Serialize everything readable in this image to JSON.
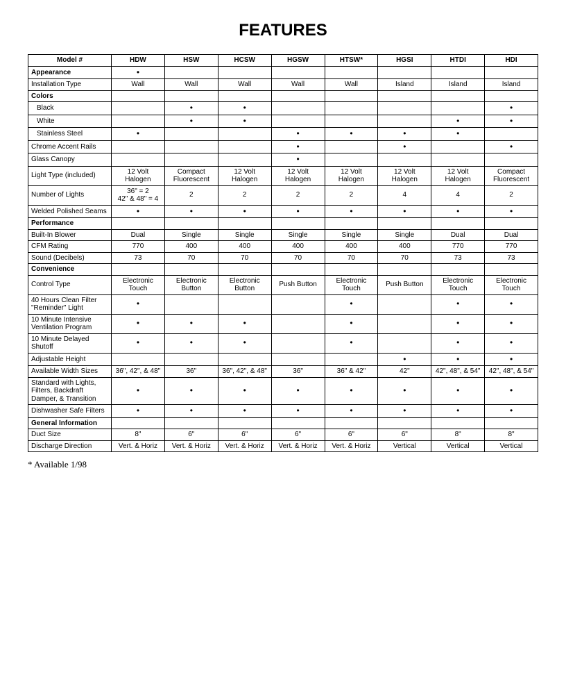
{
  "title": "FEATURES",
  "footnote": "* Available 1/98",
  "columns": [
    "Model #",
    "HDW",
    "HSW",
    "HCSW",
    "HGSW",
    "HTSW*",
    "HGSI",
    "HTDI",
    "HDI"
  ],
  "rows": [
    {
      "type": "section",
      "label": "Appearance",
      "cells": [
        "•",
        "",
        "",
        "",
        "",
        "",
        "",
        ""
      ]
    },
    {
      "type": "data",
      "label": "Installation Type",
      "cells": [
        "Wall",
        "Wall",
        "Wall",
        "Wall",
        "Wall",
        "Island",
        "Island",
        "Island"
      ]
    },
    {
      "type": "section",
      "label": "Colors",
      "cells": [
        "",
        "",
        "",
        "",
        "",
        "",
        "",
        ""
      ]
    },
    {
      "type": "indent",
      "label": "Black",
      "cells": [
        "",
        "•",
        "•",
        "",
        "",
        "",
        "",
        "•"
      ]
    },
    {
      "type": "indent",
      "label": "White",
      "cells": [
        "",
        "•",
        "•",
        "",
        "",
        "",
        "•",
        "•"
      ]
    },
    {
      "type": "indent",
      "label": "Stainless Steel",
      "cells": [
        "•",
        "",
        "",
        "•",
        "•",
        "•",
        "•",
        ""
      ]
    },
    {
      "type": "data",
      "label": "Chrome Accent Rails",
      "cells": [
        "",
        "",
        "",
        "•",
        "",
        "•",
        "",
        "•"
      ]
    },
    {
      "type": "data",
      "label": "Glass Canopy",
      "cells": [
        "",
        "",
        "",
        "•",
        "",
        "",
        "",
        ""
      ]
    },
    {
      "type": "data",
      "label": "Light Type (included)",
      "cells": [
        "12 Volt Halogen",
        "Compact Fluorescent",
        "12 Volt Halogen",
        "12 Volt Halogen",
        "12 Volt Halogen",
        "12 Volt Halogen",
        "12 Volt Halogen",
        "Compact Fluorescent"
      ]
    },
    {
      "type": "data",
      "label": "Number of Lights",
      "cells": [
        "36\" = 2\n42\" & 48\" = 4",
        "2",
        "2",
        "2",
        "2",
        "4",
        "4",
        "2"
      ]
    },
    {
      "type": "data",
      "label": "Welded Polished Seams",
      "cells": [
        "•",
        "•",
        "•",
        "•",
        "•",
        "•",
        "•",
        "•"
      ]
    },
    {
      "type": "section",
      "label": "Performance",
      "cells": [
        "",
        "",
        "",
        "",
        "",
        "",
        "",
        ""
      ]
    },
    {
      "type": "data",
      "label": "Built-In Blower",
      "cells": [
        "Dual",
        "Single",
        "Single",
        "Single",
        "Single",
        "Single",
        "Dual",
        "Dual"
      ]
    },
    {
      "type": "data",
      "label": "CFM Rating",
      "cells": [
        "770",
        "400",
        "400",
        "400",
        "400",
        "400",
        "770",
        "770"
      ]
    },
    {
      "type": "data",
      "label": "Sound (Decibels)",
      "cells": [
        "73",
        "70",
        "70",
        "70",
        "70",
        "70",
        "73",
        "73"
      ]
    },
    {
      "type": "section",
      "label": "Convenience",
      "cells": [
        "",
        "",
        "",
        "",
        "",
        "",
        "",
        ""
      ]
    },
    {
      "type": "data",
      "label": "Control Type",
      "cells": [
        "Electronic Touch",
        "Electronic Button",
        "Electronic Button",
        "Push Button",
        "Electronic Touch",
        "Push Button",
        "Electronic Touch",
        "Electronic Touch"
      ]
    },
    {
      "type": "data",
      "label": "40 Hours Clean Filter \"Reminder\" Light",
      "cells": [
        "•",
        "",
        "",
        "",
        "•",
        "",
        "•",
        "•"
      ]
    },
    {
      "type": "data",
      "label": "10 Minute Intensive Ventilation Program",
      "cells": [
        "•",
        "•",
        "•",
        "",
        "•",
        "",
        "•",
        "•"
      ]
    },
    {
      "type": "data",
      "label": "10 Minute Delayed Shutoff",
      "cells": [
        "•",
        "•",
        "•",
        "",
        "•",
        "",
        "•",
        "•"
      ]
    },
    {
      "type": "data",
      "label": "Adjustable Height",
      "cells": [
        "",
        "",
        "",
        "",
        "",
        "•",
        "•",
        "•"
      ]
    },
    {
      "type": "data",
      "label": "Available Width Sizes",
      "cells": [
        "36\", 42\", & 48\"",
        "36\"",
        "36\", 42\", & 48\"",
        "36\"",
        "36\" & 42\"",
        "42\"",
        "42\", 48\", & 54\"",
        "42\", 48\", & 54\""
      ]
    },
    {
      "type": "data",
      "label": "Standard with Lights, Filters, Backdraft Damper, & Transition",
      "cells": [
        "•",
        "•",
        "•",
        "•",
        "•",
        "•",
        "•",
        "•"
      ]
    },
    {
      "type": "data",
      "label": "Dishwasher Safe Filters",
      "cells": [
        "•",
        "•",
        "•",
        "•",
        "•",
        "•",
        "•",
        "•"
      ]
    },
    {
      "type": "section",
      "label": "General Information",
      "cells": [
        "",
        "",
        "",
        "",
        "",
        "",
        "",
        ""
      ]
    },
    {
      "type": "data",
      "label": "Duct Size",
      "cells": [
        "8\"",
        "6\"",
        "6\"",
        "6\"",
        "6\"",
        "6\"",
        "8\"",
        "8\""
      ]
    },
    {
      "type": "data",
      "label": "Discharge Direction",
      "cells": [
        "Vert. & Horiz",
        "Vert. & Horiz",
        "Vert. & Horiz",
        "Vert. & Horiz",
        "Vert. & Horiz",
        "Vertical",
        "Vertical",
        "Vertical"
      ]
    }
  ]
}
